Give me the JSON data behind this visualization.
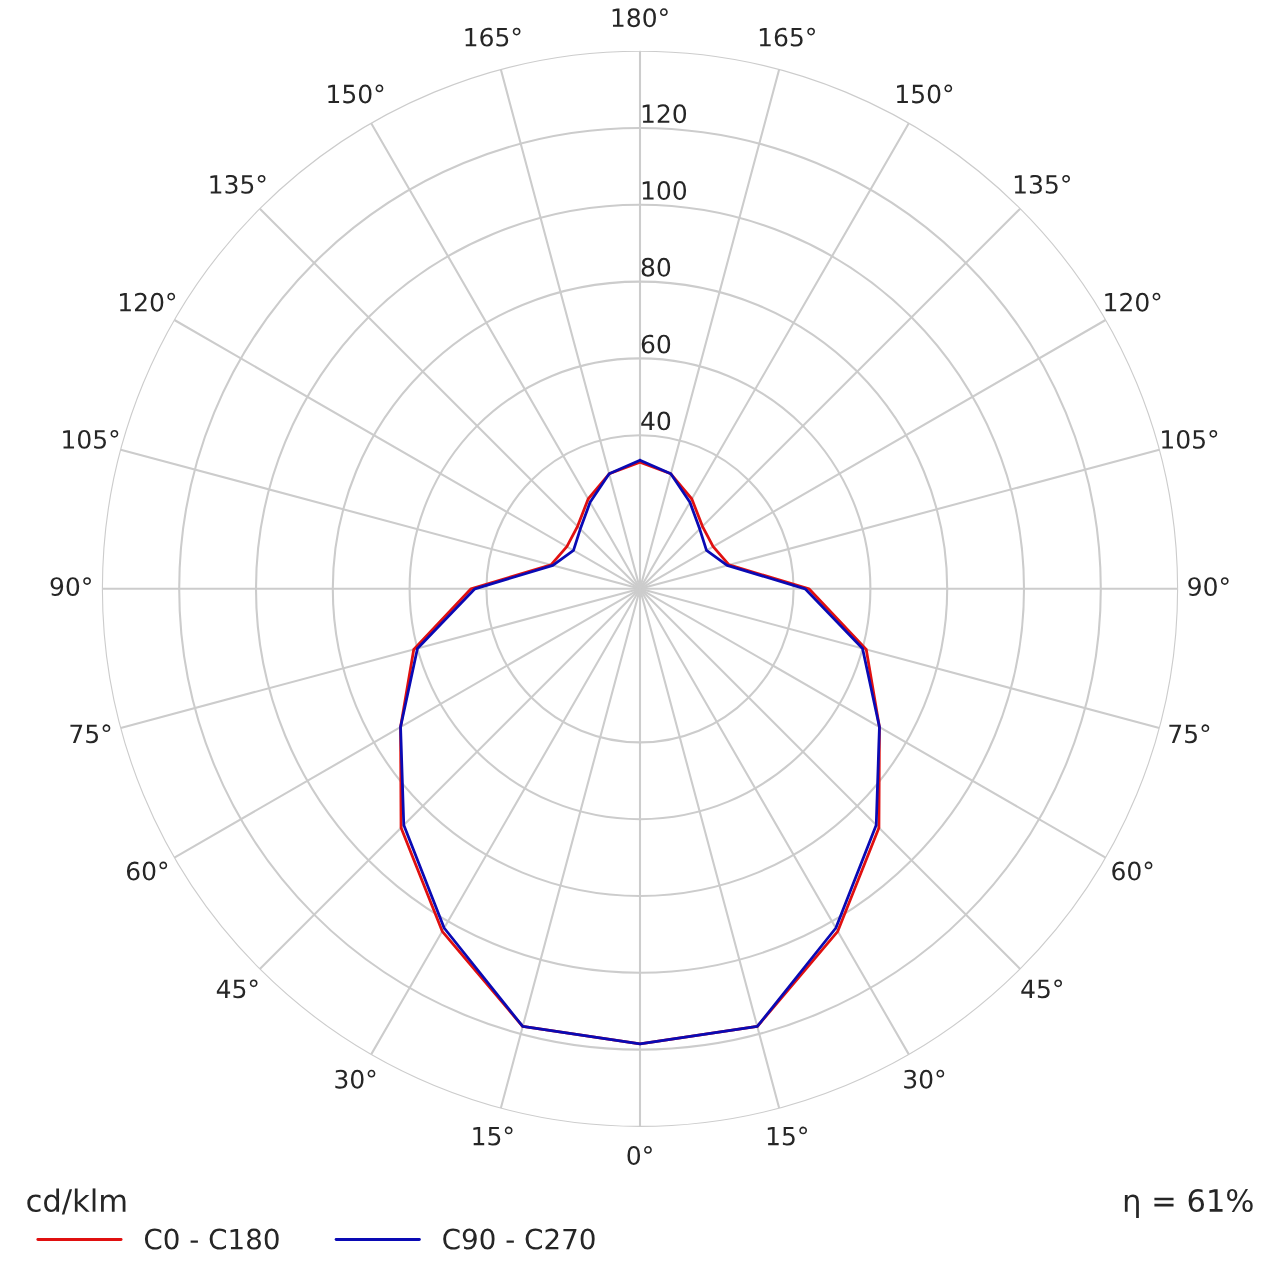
{
  "chart_data": {
    "type": "radar",
    "ylabel": "cd/klm",
    "categories": [
      "180°",
      "165°",
      "150°",
      "135°",
      "120°",
      "105°",
      "90°",
      "75°",
      "60°",
      "45°",
      "30°",
      "15°",
      "0°",
      "15°",
      "30°",
      "45°",
      "60°",
      "75°",
      "90°",
      "105°",
      "120°",
      "135°",
      "150°",
      "165°"
    ],
    "series": [
      {
        "name": "C0 - C180",
        "color": "#e01010",
        "values": [
          33,
          31,
          27,
          23,
          22,
          24,
          44,
          61,
          72,
          88,
          103,
          118,
          118.5,
          118,
          103,
          88,
          72,
          61,
          44,
          24,
          22,
          23,
          27,
          31
        ]
      },
      {
        "name": "C90 - C270",
        "color": "#0a0ab4",
        "values": [
          33.5,
          31,
          26,
          22,
          20,
          23.5,
          43,
          60,
          72,
          87,
          102,
          118,
          118.5,
          118,
          102,
          87,
          72,
          60,
          43,
          23.5,
          20,
          22,
          26,
          31
        ]
      }
    ],
    "ylim": [
      0,
      140
    ],
    "yticks": [
      40,
      60,
      80,
      100,
      120
    ],
    "grid": true,
    "legend": "bottom left",
    "annotations": [
      "η = 61%"
    ]
  }
}
